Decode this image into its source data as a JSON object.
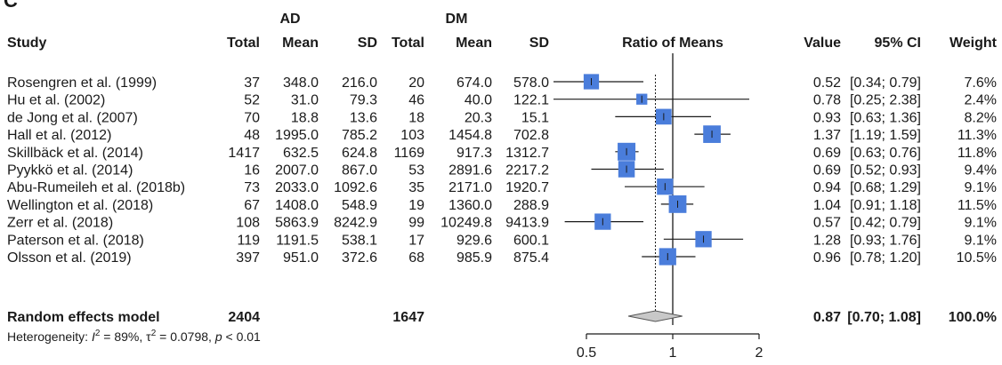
{
  "panel_label": "C",
  "headers": {
    "group_ad": "AD",
    "group_dm": "DM",
    "study": "Study",
    "total_ad": "Total",
    "mean_ad": "Mean",
    "sd_ad": "SD",
    "total_dm": "Total",
    "mean_dm": "Mean",
    "sd_dm": "SD",
    "ratio": "Ratio of Means",
    "value": "Value",
    "ci": "95% CI",
    "weight": "Weight"
  },
  "chart_data": {
    "type": "forest",
    "x_scale": "log",
    "xlim": [
      0.4,
      2.5
    ],
    "x_ticks": [
      {
        "value": 0.5,
        "label": "0.5"
      },
      {
        "value": 1,
        "label": "1"
      },
      {
        "value": 2,
        "label": "2"
      }
    ],
    "reference_line": 1,
    "pooled_reference_line": 0.87,
    "studies": [
      {
        "study": "Rosengren et al. (1999)",
        "total_ad": "37",
        "mean_ad": "348.0",
        "sd_ad": "216.0",
        "total_dm": "20",
        "mean_dm": "674.0",
        "sd_dm": "578.0",
        "value": "0.52",
        "ci": "[0.34; 0.79]",
        "weight": "7.6%",
        "ratio": 0.52,
        "ci_low": 0.34,
        "ci_high": 0.79,
        "weight_pct": 7.6
      },
      {
        "study": "Hu et al. (2002)",
        "total_ad": "52",
        "mean_ad": "31.0",
        "sd_ad": "79.3",
        "total_dm": "46",
        "mean_dm": "40.0",
        "sd_dm": "122.1",
        "value": "0.78",
        "ci": "[0.25; 2.38]",
        "weight": "2.4%",
        "ratio": 0.78,
        "ci_low": 0.25,
        "ci_high": 2.38,
        "weight_pct": 2.4
      },
      {
        "study": "de Jong et al. (2007)",
        "total_ad": "70",
        "mean_ad": "18.8",
        "sd_ad": "13.6",
        "total_dm": "18",
        "mean_dm": "20.3",
        "sd_dm": "15.1",
        "value": "0.93",
        "ci": "[0.63; 1.36]",
        "weight": "8.2%",
        "ratio": 0.93,
        "ci_low": 0.63,
        "ci_high": 1.36,
        "weight_pct": 8.2
      },
      {
        "study": "Hall et al. (2012)",
        "total_ad": "48",
        "mean_ad": "1995.0",
        "sd_ad": "785.2",
        "total_dm": "103",
        "mean_dm": "1454.8",
        "sd_dm": "702.8",
        "value": "1.37",
        "ci": "[1.19; 1.59]",
        "weight": "11.3%",
        "ratio": 1.37,
        "ci_low": 1.19,
        "ci_high": 1.59,
        "weight_pct": 11.3
      },
      {
        "study": "Skillbäck et al. (2014)",
        "total_ad": "1417",
        "mean_ad": "632.5",
        "sd_ad": "624.8",
        "total_dm": "1169",
        "mean_dm": "917.3",
        "sd_dm": "1312.7",
        "value": "0.69",
        "ci": "[0.63; 0.76]",
        "weight": "11.8%",
        "ratio": 0.69,
        "ci_low": 0.63,
        "ci_high": 0.76,
        "weight_pct": 11.8
      },
      {
        "study": "Pyykkö et al. (2014)",
        "total_ad": "16",
        "mean_ad": "2007.0",
        "sd_ad": "867.0",
        "total_dm": "53",
        "mean_dm": "2891.6",
        "sd_dm": "2217.2",
        "value": "0.69",
        "ci": "[0.52; 0.93]",
        "weight": "9.4%",
        "ratio": 0.69,
        "ci_low": 0.52,
        "ci_high": 0.93,
        "weight_pct": 9.4
      },
      {
        "study": "Abu-Rumeileh et al. (2018b)",
        "total_ad": "73",
        "mean_ad": "2033.0",
        "sd_ad": "1092.6",
        "total_dm": "35",
        "mean_dm": "2171.0",
        "sd_dm": "1920.7",
        "value": "0.94",
        "ci": "[0.68; 1.29]",
        "weight": "9.1%",
        "ratio": 0.94,
        "ci_low": 0.68,
        "ci_high": 1.29,
        "weight_pct": 9.1
      },
      {
        "study": "Wellington et al. (2018)",
        "total_ad": "67",
        "mean_ad": "1408.0",
        "sd_ad": "548.9",
        "total_dm": "19",
        "mean_dm": "1360.0",
        "sd_dm": "288.9",
        "value": "1.04",
        "ci": "[0.91; 1.18]",
        "weight": "11.5%",
        "ratio": 1.04,
        "ci_low": 0.91,
        "ci_high": 1.18,
        "weight_pct": 11.5
      },
      {
        "study": "Zerr et al. (2018)",
        "total_ad": "108",
        "mean_ad": "5863.9",
        "sd_ad": "8242.9",
        "total_dm": "99",
        "mean_dm": "10249.8",
        "sd_dm": "9413.9",
        "value": "0.57",
        "ci": "[0.42; 0.79]",
        "weight": "9.1%",
        "ratio": 0.57,
        "ci_low": 0.42,
        "ci_high": 0.79,
        "weight_pct": 9.1
      },
      {
        "study": "Paterson et al. (2018)",
        "total_ad": "119",
        "mean_ad": "1191.5",
        "sd_ad": "538.1",
        "total_dm": "17",
        "mean_dm": "929.6",
        "sd_dm": "600.1",
        "value": "1.28",
        "ci": "[0.93; 1.76]",
        "weight": "9.1%",
        "ratio": 1.28,
        "ci_low": 0.93,
        "ci_high": 1.76,
        "weight_pct": 9.1
      },
      {
        "study": "Olsson et al. (2019)",
        "total_ad": "397",
        "mean_ad": "951.0",
        "sd_ad": "372.6",
        "total_dm": "68",
        "mean_dm": "985.9",
        "sd_dm": "875.4",
        "value": "0.96",
        "ci": "[0.78; 1.20]",
        "weight": "10.5%",
        "ratio": 0.96,
        "ci_low": 0.78,
        "ci_high": 1.2,
        "weight_pct": 10.5
      }
    ],
    "pooled": {
      "study": "Random effects model",
      "total_ad": "2404",
      "total_dm": "1647",
      "value": "0.87",
      "ci": "[0.70; 1.08]",
      "weight": "100.0%",
      "ratio": 0.87,
      "ci_low": 0.7,
      "ci_high": 1.08
    },
    "heterogeneity": {
      "prefix": "Heterogeneity: ",
      "i2_symbol": "I",
      "i2_value": " = 89%, ",
      "tau2_symbol": "τ",
      "tau2_value": " = 0.0798, ",
      "p_symbol": "p",
      "p_value": " < 0.01"
    },
    "colors": {
      "box": "#4a7ddb",
      "diamond": "#c8c8c8",
      "line": "#1a1a1a"
    }
  }
}
